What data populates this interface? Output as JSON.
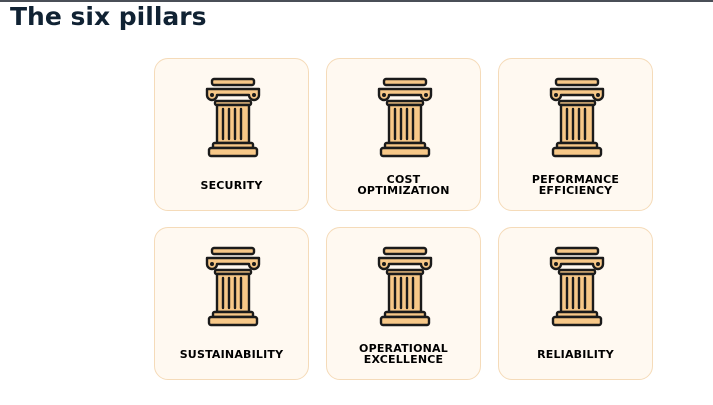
{
  "page": {
    "title": "The six pillars"
  },
  "colors": {
    "card_background": "#fff9f1",
    "card_border": "#f5dbb9",
    "pillar_fill": "#f7c888",
    "pillar_outline": "#1b1b1b",
    "title_text": "#102233"
  },
  "pillars": [
    {
      "label": "SECURITY",
      "icon": "pillar-icon"
    },
    {
      "label": "COST\nOPTIMIZATION",
      "icon": "pillar-icon"
    },
    {
      "label": "PEFORMANCE\nEFFICIENCY",
      "icon": "pillar-icon"
    },
    {
      "label": "SUSTAINABILITY",
      "icon": "pillar-icon"
    },
    {
      "label": "OPERATIONAL\nEXCELLENCE",
      "icon": "pillar-icon"
    },
    {
      "label": "RELIABILITY",
      "icon": "pillar-icon"
    }
  ]
}
